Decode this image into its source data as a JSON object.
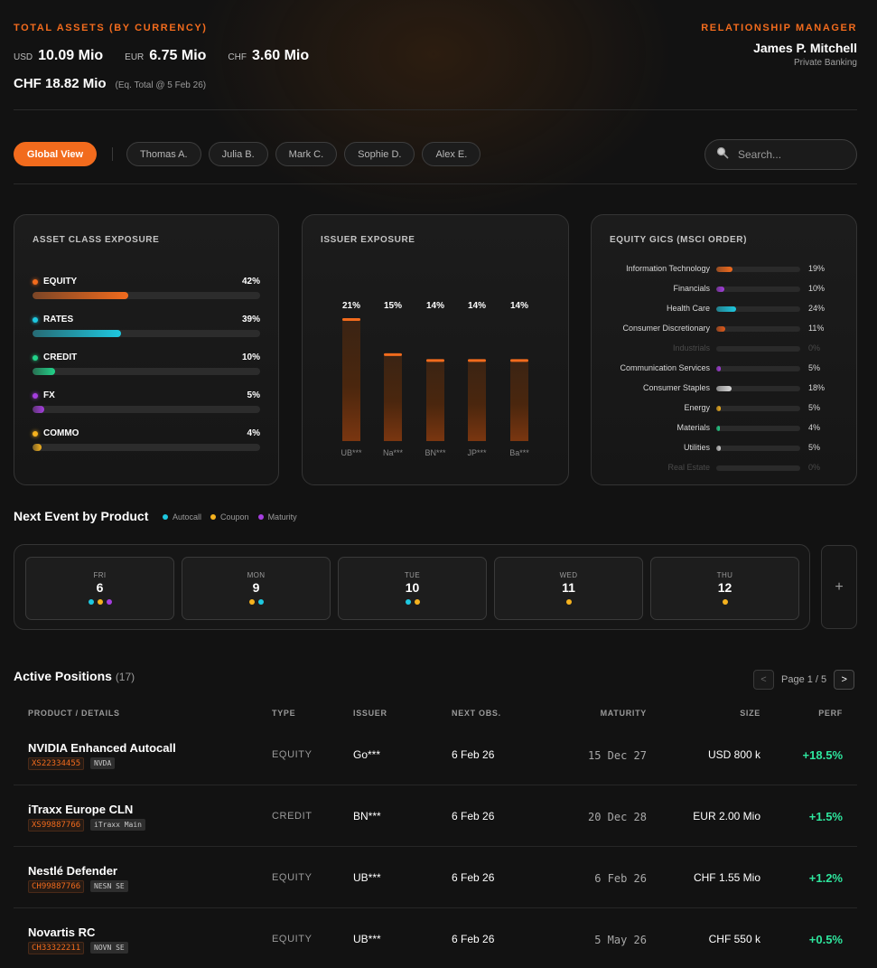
{
  "header": {
    "total_assets_label": "TOTAL ASSETS (BY CURRENCY)",
    "currencies": [
      {
        "code": "USD",
        "value": "10.09 Mio"
      },
      {
        "code": "EUR",
        "value": "6.75 Mio"
      },
      {
        "code": "CHF",
        "value": "3.60 Mio"
      }
    ],
    "total_value": "CHF 18.82 Mio",
    "total_note": "(Eq. Total @ 5 Feb 26)",
    "rm_label": "RELATIONSHIP MANAGER",
    "rm_name": "James P. Mitchell",
    "rm_title": "Private Banking"
  },
  "filters": {
    "global_label": "Global View",
    "chips": [
      "Thomas A.",
      "Julia B.",
      "Mark C.",
      "Sophie D.",
      "Alex E."
    ],
    "search_placeholder": "Search..."
  },
  "colors": {
    "accent": "#f26b1d",
    "rates": "#1ec8e0",
    "credit": "#22d38a",
    "fx": "#a63ee0",
    "commo": "#f5b21e",
    "positive": "#2ee59d",
    "autocall": "#1ec8e0",
    "coupon": "#f5b21e",
    "maturity": "#a63ee0"
  },
  "asset_class": {
    "title": "ASSET CLASS EXPOSURE",
    "items": [
      {
        "name": "EQUITY",
        "pct": "42%",
        "value": 42,
        "color": "#f26b1d"
      },
      {
        "name": "RATES",
        "pct": "39%",
        "value": 39,
        "color": "#1ec8e0"
      },
      {
        "name": "CREDIT",
        "pct": "10%",
        "value": 10,
        "color": "#22d38a"
      },
      {
        "name": "FX",
        "pct": "5%",
        "value": 5,
        "color": "#a63ee0"
      },
      {
        "name": "COMMO",
        "pct": "4%",
        "value": 4,
        "color": "#f5b21e"
      }
    ]
  },
  "issuer_exposure": {
    "title": "ISSUER EXPOSURE"
  },
  "chart_data": {
    "type": "bar",
    "categories": [
      "UB***",
      "Na***",
      "BN***",
      "JP***",
      "Ba***"
    ],
    "values": [
      21,
      15,
      14,
      14,
      14
    ],
    "labels": [
      "21%",
      "15%",
      "14%",
      "14%",
      "14%"
    ],
    "ylim": [
      0,
      21
    ]
  },
  "equity_gics": {
    "title": "EQUITY GICS (MSCI ORDER)",
    "items": [
      {
        "name": "Information Technology",
        "pct": "19%",
        "value": 19,
        "color": "#f26b1d"
      },
      {
        "name": "Financials",
        "pct": "10%",
        "value": 10,
        "color": "#a63ee0"
      },
      {
        "name": "Health Care",
        "pct": "24%",
        "value": 24,
        "color": "#1ec8e0"
      },
      {
        "name": "Consumer Discretionary",
        "pct": "11%",
        "value": 11,
        "color": "#e05a1a"
      },
      {
        "name": "Industrials",
        "pct": "0%",
        "value": 0,
        "color": "#555555"
      },
      {
        "name": "Communication Services",
        "pct": "5%",
        "value": 5,
        "color": "#a63ee0"
      },
      {
        "name": "Consumer Staples",
        "pct": "18%",
        "value": 18,
        "color": "#d8d8d8"
      },
      {
        "name": "Energy",
        "pct": "5%",
        "value": 5,
        "color": "#f5b21e"
      },
      {
        "name": "Materials",
        "pct": "4%",
        "value": 4,
        "color": "#22d38a"
      },
      {
        "name": "Utilities",
        "pct": "5%",
        "value": 5,
        "color": "#cfcfcf"
      },
      {
        "name": "Real Estate",
        "pct": "0%",
        "value": 0,
        "color": "#555555"
      }
    ]
  },
  "next_event": {
    "title": "Next Event by Product",
    "legend": [
      {
        "label": "Autocall",
        "color": "#1ec8e0"
      },
      {
        "label": "Coupon",
        "color": "#f5b21e"
      },
      {
        "label": "Maturity",
        "color": "#a63ee0"
      }
    ],
    "days": [
      {
        "dow": "FRI",
        "date": "6",
        "dots": [
          "#1ec8e0",
          "#f5b21e",
          "#a63ee0"
        ]
      },
      {
        "dow": "MON",
        "date": "9",
        "dots": [
          "#f5b21e",
          "#1ec8e0"
        ]
      },
      {
        "dow": "TUE",
        "date": "10",
        "dots": [
          "#1ec8e0",
          "#f5b21e"
        ]
      },
      {
        "dow": "WED",
        "date": "11",
        "dots": [
          "#f5b21e"
        ]
      },
      {
        "dow": "THU",
        "date": "12",
        "dots": [
          "#f5b21e"
        ]
      }
    ],
    "add_label": "+"
  },
  "positions": {
    "title": "Active Positions",
    "count": "(17)",
    "pager": {
      "prev": "<",
      "text": "Page 1 / 5",
      "next": ">"
    },
    "columns": {
      "product": "PRODUCT / DETAILS",
      "type": "TYPE",
      "issuer": "ISSUER",
      "next_obs": "NEXT OBS.",
      "maturity": "MATURITY",
      "size": "SIZE",
      "perf": "PERF"
    },
    "rows": [
      {
        "name": "NVIDIA Enhanced Autocall",
        "isin": "XS22334455",
        "tag": "NVDA",
        "type": "EQUITY",
        "issuer": "Go***",
        "next_obs": "6 Feb 26",
        "maturity": "15 Dec 27",
        "size": "USD 800 k",
        "perf": "+18.5%"
      },
      {
        "name": "iTraxx Europe CLN",
        "isin": "XS99887766",
        "tag": "iTraxx Main",
        "type": "CREDIT",
        "issuer": "BN***",
        "next_obs": "6 Feb 26",
        "maturity": "20 Dec 28",
        "size": "EUR 2.00 Mio",
        "perf": "+1.5%"
      },
      {
        "name": "Nestlé Defender",
        "isin": "CH99887766",
        "tag": "NESN SE",
        "type": "EQUITY",
        "issuer": "UB***",
        "next_obs": "6 Feb 26",
        "maturity": "6 Feb 26",
        "size": "CHF 1.55 Mio",
        "perf": "+1.2%"
      },
      {
        "name": "Novartis RC",
        "isin": "CH33322211",
        "tag": "NOVN SE",
        "type": "EQUITY",
        "issuer": "UB***",
        "next_obs": "6 Feb 26",
        "maturity": "5 May 26",
        "size": "CHF 550 k",
        "perf": "+0.5%"
      }
    ]
  }
}
